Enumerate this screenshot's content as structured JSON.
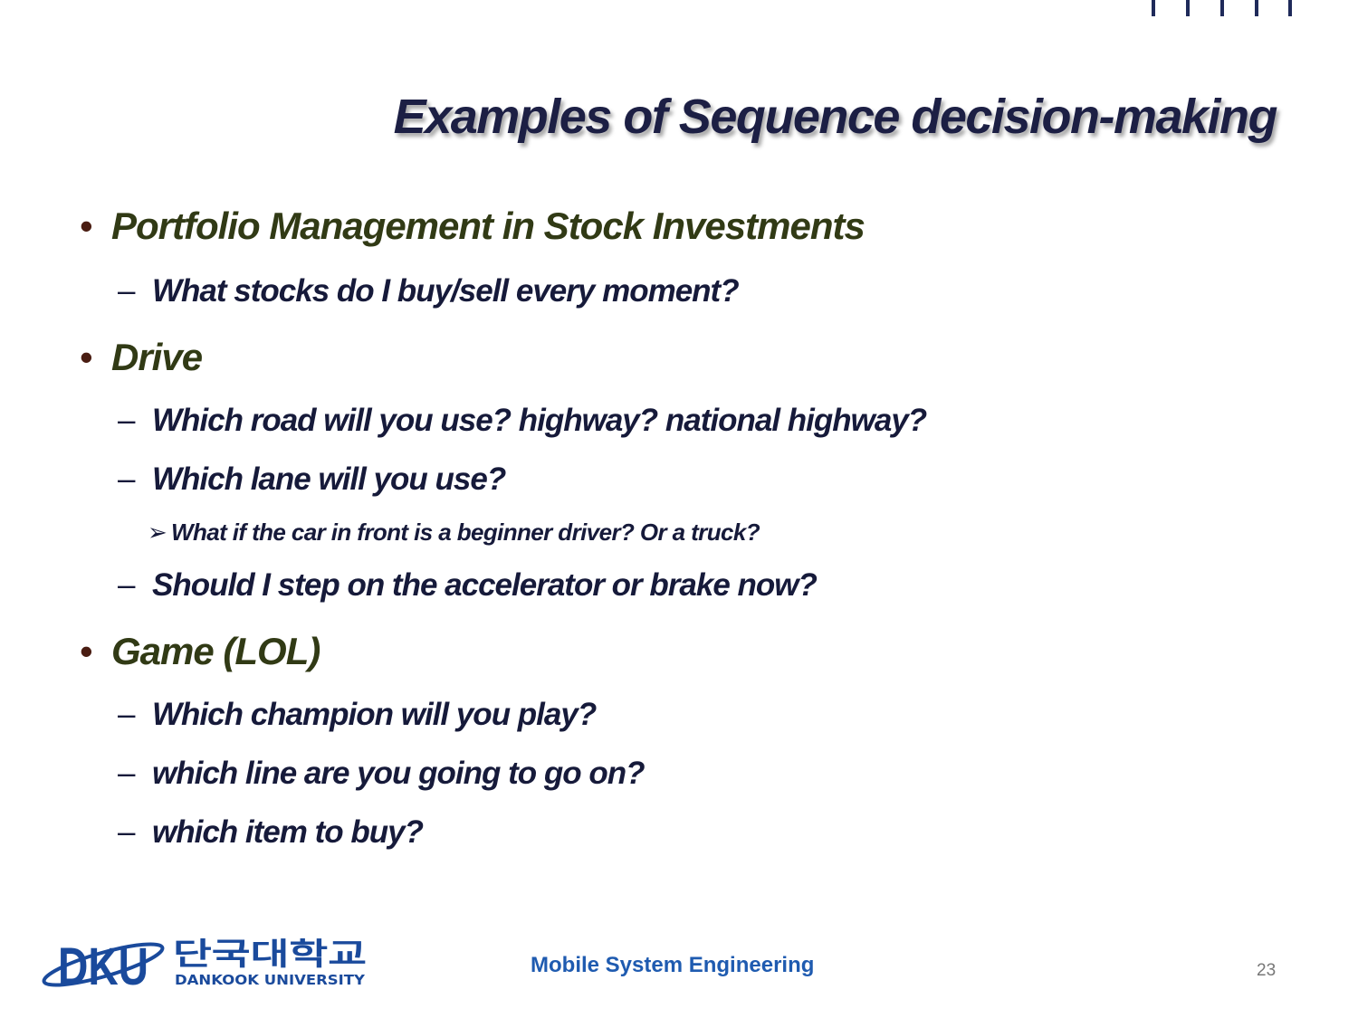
{
  "slide": {
    "title": "Examples of Sequence decision-making",
    "bullets": [
      {
        "text": "Portfolio Management in Stock Investments",
        "sub": [
          {
            "text": "What stocks do I buy/sell every moment?"
          }
        ]
      },
      {
        "text": "Drive",
        "sub": [
          {
            "text": "Which road will you use? highway? national highway?"
          },
          {
            "text": "Which lane will you use?",
            "sub": [
              {
                "text": "What if the car in front is a beginner driver? Or a truck?"
              }
            ]
          },
          {
            "text": "Should I step on the accelerator or brake now?"
          }
        ]
      },
      {
        "text": "Game (LOL)",
        "sub": [
          {
            "text": "Which champion will you play?"
          },
          {
            "text": "which line are you going to go on?"
          },
          {
            "text": "which item to buy?"
          }
        ]
      }
    ]
  },
  "markers": {
    "level1": "•",
    "level2": "–",
    "level3": "➢"
  },
  "footer": {
    "logo_mark": "DKU",
    "logo_korean": "단국대학교",
    "logo_english": "DANKOOK UNIVERSITY",
    "course": "Mobile System Engineering",
    "page_number": "23"
  },
  "colors": {
    "title": "#1c1f44",
    "level1_text": "#313a15",
    "level1_bullet": "#4a1d12",
    "level2_text": "#161a3a",
    "footer_title": "#1f5bb0",
    "logo_blue": "#1a4a9c",
    "accent_ticks": "#1f2a5a"
  }
}
